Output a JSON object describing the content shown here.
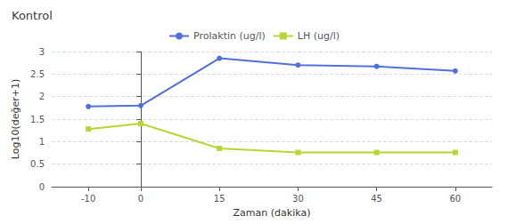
{
  "chart_data": {
    "type": "line",
    "title": "Kontrol",
    "xlabel": "Zaman (dakika)",
    "ylabel": "Log10(değer+1)",
    "x": [
      -10,
      0,
      15,
      30,
      45,
      60
    ],
    "series": [
      {
        "name": "Prolaktin (ug/l)",
        "values": [
          1.78,
          1.8,
          2.85,
          2.7,
          2.67,
          2.57
        ],
        "marker": "circle"
      },
      {
        "name": "LH (ug/l)",
        "values": [
          1.28,
          1.4,
          0.85,
          0.76,
          0.76,
          0.76
        ],
        "marker": "square"
      }
    ],
    "xlim": [
      -17,
      67
    ],
    "xticks": [
      -10,
      0,
      15,
      30,
      45,
      60
    ],
    "ylim": [
      0,
      3
    ],
    "yticks": [
      0,
      0.5,
      1,
      1.5,
      2,
      2.5,
      3
    ],
    "grid": true,
    "legend": "upper center"
  }
}
